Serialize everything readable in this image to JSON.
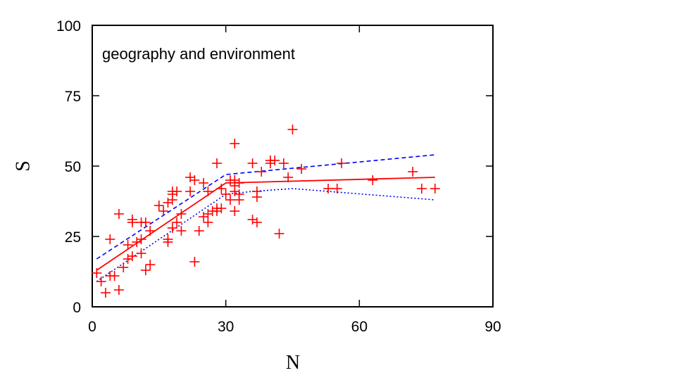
{
  "chart_data": {
    "type": "scatter",
    "title": "",
    "xlabel": "N",
    "ylabel": "S",
    "xlim": [
      0,
      90
    ],
    "ylim": [
      0,
      100
    ],
    "xticks": [
      0,
      30,
      60,
      90
    ],
    "yticks": [
      0,
      25,
      50,
      75,
      100
    ],
    "xtick_labels": [
      "0",
      "30",
      "60",
      "90"
    ],
    "ytick_labels": [
      "0",
      "25",
      "50",
      "75",
      "100"
    ],
    "grid": false,
    "annotation": "geography and environment",
    "colors": {
      "points": "#ff0000",
      "fit": "#ff0000",
      "ci": "#0000ff"
    },
    "series": [
      {
        "kind": "points",
        "marker": "plus",
        "points": [
          [
            1,
            12
          ],
          [
            2,
            9
          ],
          [
            3,
            5
          ],
          [
            4,
            11
          ],
          [
            4,
            24
          ],
          [
            5,
            11
          ],
          [
            6,
            33
          ],
          [
            6,
            6
          ],
          [
            7,
            14
          ],
          [
            8,
            22
          ],
          [
            8,
            17
          ],
          [
            9,
            31
          ],
          [
            9,
            30
          ],
          [
            9,
            18
          ],
          [
            10,
            23
          ],
          [
            11,
            30
          ],
          [
            11,
            19
          ],
          [
            11,
            24
          ],
          [
            12,
            13
          ],
          [
            12,
            30
          ],
          [
            13,
            15
          ],
          [
            13,
            27
          ],
          [
            15,
            36
          ],
          [
            16,
            34
          ],
          [
            17,
            37
          ],
          [
            17,
            24
          ],
          [
            17,
            23
          ],
          [
            18,
            41
          ],
          [
            18,
            40
          ],
          [
            18,
            38
          ],
          [
            18,
            28
          ],
          [
            19,
            41
          ],
          [
            19,
            30
          ],
          [
            20,
            27
          ],
          [
            20,
            33
          ],
          [
            22,
            41
          ],
          [
            22,
            46
          ],
          [
            23,
            45
          ],
          [
            23,
            16
          ],
          [
            24,
            27
          ],
          [
            25,
            44
          ],
          [
            25,
            32
          ],
          [
            26,
            33
          ],
          [
            26,
            30
          ],
          [
            26,
            41
          ],
          [
            27,
            34
          ],
          [
            28,
            35
          ],
          [
            28,
            34
          ],
          [
            28,
            51
          ],
          [
            29,
            42
          ],
          [
            29,
            35
          ],
          [
            30,
            40
          ],
          [
            31,
            38
          ],
          [
            31,
            45
          ],
          [
            32,
            58
          ],
          [
            32,
            34
          ],
          [
            32,
            45
          ],
          [
            32,
            43
          ],
          [
            32,
            41
          ],
          [
            33,
            44
          ],
          [
            33,
            40
          ],
          [
            33,
            38
          ],
          [
            36,
            51
          ],
          [
            36,
            31
          ],
          [
            37,
            30
          ],
          [
            37,
            39
          ],
          [
            37,
            41
          ],
          [
            38,
            48
          ],
          [
            40,
            51
          ],
          [
            40,
            52
          ],
          [
            41,
            52
          ],
          [
            42,
            26
          ],
          [
            43,
            51
          ],
          [
            44,
            46
          ],
          [
            45,
            63
          ],
          [
            47,
            49
          ],
          [
            53,
            42
          ],
          [
            55,
            42
          ],
          [
            56,
            51
          ],
          [
            63,
            45
          ],
          [
            72,
            48
          ],
          [
            74,
            42
          ],
          [
            77,
            42
          ]
        ]
      },
      {
        "kind": "fit",
        "style": "solid",
        "points": [
          [
            1,
            13
          ],
          [
            30,
            44
          ],
          [
            77,
            46
          ]
        ]
      },
      {
        "kind": "ci-upper",
        "style": "dashed",
        "points": [
          [
            1,
            17
          ],
          [
            30,
            47
          ],
          [
            77,
            54
          ]
        ]
      },
      {
        "kind": "ci-lower",
        "style": "dotted",
        "points": [
          [
            1,
            9
          ],
          [
            30,
            40
          ],
          [
            36,
            41
          ],
          [
            45,
            42
          ],
          [
            77,
            38
          ]
        ]
      }
    ]
  }
}
